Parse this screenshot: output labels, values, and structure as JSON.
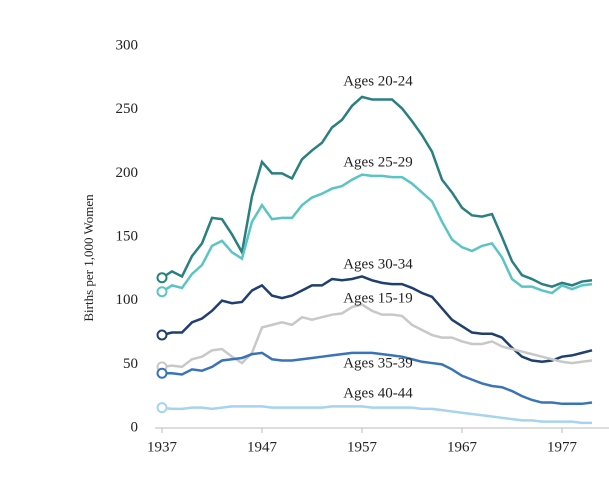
{
  "chart_data": {
    "type": "line",
    "y_label": "Births per 1,000 Women",
    "x": [
      1937,
      1938,
      1939,
      1940,
      1941,
      1942,
      1943,
      1944,
      1945,
      1946,
      1947,
      1948,
      1949,
      1950,
      1951,
      1952,
      1953,
      1954,
      1955,
      1956,
      1957,
      1958,
      1959,
      1960,
      1961,
      1962,
      1963,
      1964,
      1965,
      1966,
      1967,
      1968,
      1969,
      1970,
      1971,
      1972,
      1973,
      1974,
      1975,
      1976,
      1977,
      1978,
      1979,
      1980
    ],
    "xlim": [
      1937,
      1981
    ],
    "xticks": [
      1937,
      1947,
      1957,
      1967,
      1977
    ],
    "ylim": [
      0,
      300
    ],
    "yticks": [
      0,
      50,
      100,
      150,
      200,
      250,
      300
    ],
    "series": [
      {
        "name": "Ages 20-24",
        "color": "#2a7f80",
        "values": [
          118,
          123,
          119,
          135,
          145,
          165,
          164,
          152,
          138,
          182,
          209,
          200,
          200,
          196,
          211,
          218,
          224,
          236,
          242,
          253,
          260,
          258,
          258,
          258,
          251,
          241,
          230,
          217,
          195,
          185,
          173,
          167,
          166,
          168,
          150,
          131,
          120,
          117,
          113,
          111,
          114,
          112,
          115,
          116
        ]
      },
      {
        "name": "Ages 25-29",
        "color": "#5bc4c4",
        "values": [
          107,
          112,
          110,
          121,
          128,
          143,
          147,
          138,
          133,
          162,
          175,
          164,
          165,
          165,
          175,
          181,
          184,
          188,
          190,
          195,
          199,
          198,
          198,
          197,
          197,
          192,
          185,
          178,
          162,
          148,
          142,
          139,
          143,
          145,
          134,
          117,
          111,
          111,
          108,
          106,
          112,
          109,
          112,
          113
        ]
      },
      {
        "name": "Ages 30-34",
        "color": "#1f3f6e",
        "values": [
          73,
          75,
          75,
          83,
          86,
          92,
          100,
          98,
          99,
          108,
          112,
          104,
          102,
          104,
          108,
          112,
          112,
          117,
          116,
          117,
          119,
          116,
          114,
          113,
          113,
          110,
          106,
          103,
          94,
          85,
          80,
          75,
          74,
          74,
          71,
          63,
          56,
          53,
          52,
          53,
          56,
          57,
          59,
          61
        ]
      },
      {
        "name": "Ages 15-19",
        "color": "#c8c8c8",
        "values": [
          48,
          49,
          48,
          54,
          56,
          61,
          62,
          56,
          51,
          59,
          79,
          81,
          83,
          81,
          87,
          85,
          87,
          89,
          90,
          95,
          97,
          92,
          89,
          89,
          88,
          81,
          77,
          73,
          71,
          71,
          68,
          66,
          66,
          68,
          64,
          62,
          60,
          58,
          56,
          54,
          52,
          51,
          52,
          53
        ]
      },
      {
        "name": "Ages 35-39",
        "color": "#3a74b8",
        "values": [
          43,
          43,
          42,
          46,
          45,
          48,
          53,
          54,
          55,
          58,
          59,
          54,
          53,
          53,
          54,
          55,
          56,
          57,
          58,
          59,
          59,
          59,
          58,
          57,
          56,
          54,
          52,
          51,
          50,
          46,
          41,
          38,
          35,
          33,
          32,
          29,
          25,
          22,
          20,
          20,
          19,
          19,
          19,
          20
        ]
      },
      {
        "name": "Ages 40-44",
        "color": "#a6d4ee",
        "values": [
          16,
          15,
          15,
          16,
          16,
          15,
          16,
          17,
          17,
          17,
          17,
          16,
          16,
          16,
          16,
          16,
          16,
          17,
          17,
          17,
          17,
          16,
          16,
          16,
          16,
          16,
          15,
          15,
          14,
          13,
          12,
          11,
          10,
          9,
          8,
          7,
          6,
          6,
          5,
          5,
          5,
          5,
          4,
          4
        ]
      }
    ]
  }
}
